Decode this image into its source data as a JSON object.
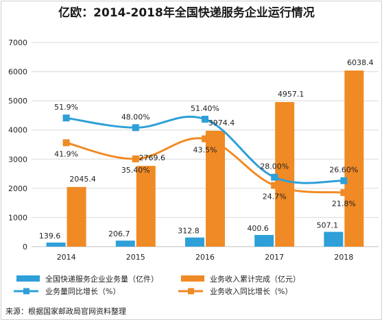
{
  "chart_data": {
    "type": "bar",
    "title": "亿欧：2014-2018年全国快递服务企业运行情况",
    "categories": [
      "2014",
      "2015",
      "2016",
      "2017",
      "2018"
    ],
    "ylim": [
      0,
      7000
    ],
    "yticks": [
      0,
      1000,
      2000,
      3000,
      4000,
      5000,
      6000,
      7000
    ],
    "grid": true,
    "legend_position": "bottom",
    "series": [
      {
        "name": "全国快递服务企业业务量（亿件）",
        "type": "bar",
        "color": "#2e9fd8",
        "values": [
          139.6,
          206.7,
          312.8,
          400.6,
          507.1
        ],
        "labels": [
          "139.6",
          "206.7",
          "312.8",
          "400.6",
          "507.1"
        ]
      },
      {
        "name": "业务收入累计完成（亿元）",
        "type": "bar",
        "color": "#f08a24",
        "values": [
          2045.4,
          2769.6,
          3974.4,
          4957.1,
          6038.4
        ],
        "labels": [
          "2045.4",
          "2769.6",
          "3974.4",
          "4957.1",
          "6038.4"
        ]
      },
      {
        "name": "业务量同比增长（%）",
        "type": "line",
        "color": "#2e9fd8",
        "values": [
          51.9,
          48.0,
          51.4,
          28.0,
          26.6
        ],
        "labels": [
          "51.9%",
          "48.00%",
          "51.40%",
          "28.00%",
          "26.60%"
        ]
      },
      {
        "name": "业务收入同比增长（%）",
        "type": "line",
        "color": "#f08a24",
        "values": [
          41.9,
          35.4,
          43.5,
          24.7,
          21.8
        ],
        "labels": [
          "41.9%",
          "35.40%",
          "43.5%",
          "24.7%",
          "21.8%"
        ]
      }
    ],
    "source": "来源：根据国家邮政局官网资料整理"
  }
}
